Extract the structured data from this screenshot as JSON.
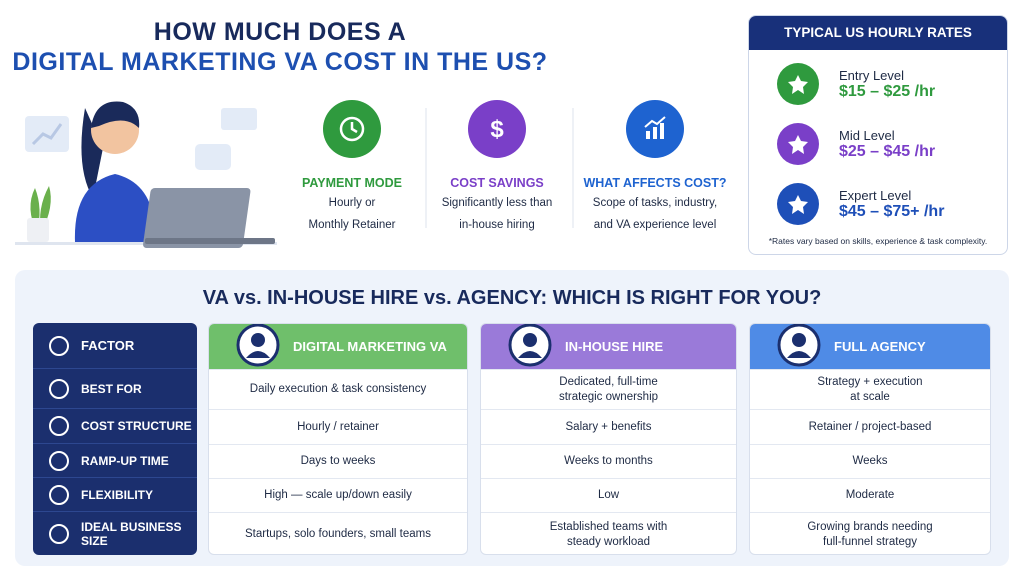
{
  "header": {
    "title_line1": "HOW MUCH DOES A",
    "title_line2": "DIGITAL MARKETING VA COST IN THE US?"
  },
  "features": [
    {
      "title": "PAYMENT MODE",
      "lines": [
        "Hourly or",
        "Monthly Retainer"
      ]
    },
    {
      "title": "COST SAVINGS",
      "lines": [
        "Significantly less than",
        "in-house hiring"
      ]
    },
    {
      "title": "WHAT AFFECTS COST?",
      "lines": [
        "Scope of tasks, industry,",
        "and VA experience level"
      ]
    }
  ],
  "rates": {
    "title": "TYPICAL US HOURLY RATES",
    "levels": [
      {
        "name": "Entry Level",
        "rate": "$15 – $25 /hr"
      },
      {
        "name": "Mid Level",
        "rate": "$25 – $45 /hr"
      },
      {
        "name": "Expert Level",
        "rate": "$45 – $75+ /hr"
      }
    ],
    "note": "*Rates vary based on skills, experience & task complexity."
  },
  "comparison": {
    "title": "VA vs. IN-HOUSE HIRE vs. AGENCY: WHICH IS RIGHT FOR YOU?",
    "factor_header": "FACTOR",
    "factors": [
      "BEST FOR",
      "COST STRUCTURE",
      "RAMP-UP TIME",
      "FLEXIBILITY",
      "IDEAL BUSINESS SIZE"
    ],
    "columns": [
      {
        "name": "DIGITAL MARKETING VA",
        "cells": [
          [
            "Daily execution & task consistency"
          ],
          [
            "Hourly / retainer"
          ],
          [
            "Days to weeks"
          ],
          [
            "High — scale up/down easily"
          ],
          [
            "Startups, solo founders, small teams"
          ]
        ]
      },
      {
        "name": "IN-HOUSE HIRE",
        "cells": [
          [
            "Dedicated, full-time",
            "strategic ownership"
          ],
          [
            "Salary + benefits"
          ],
          [
            "Weeks to months"
          ],
          [
            "Low"
          ],
          [
            "Established teams with",
            "steady workload"
          ]
        ]
      },
      {
        "name": "FULL AGENCY",
        "cells": [
          [
            "Strategy + execution",
            "at scale"
          ],
          [
            "Retainer / project-based"
          ],
          [
            "Weeks"
          ],
          [
            "Moderate"
          ],
          [
            "Growing brands needing",
            "full-funnel strategy"
          ]
        ]
      }
    ]
  }
}
